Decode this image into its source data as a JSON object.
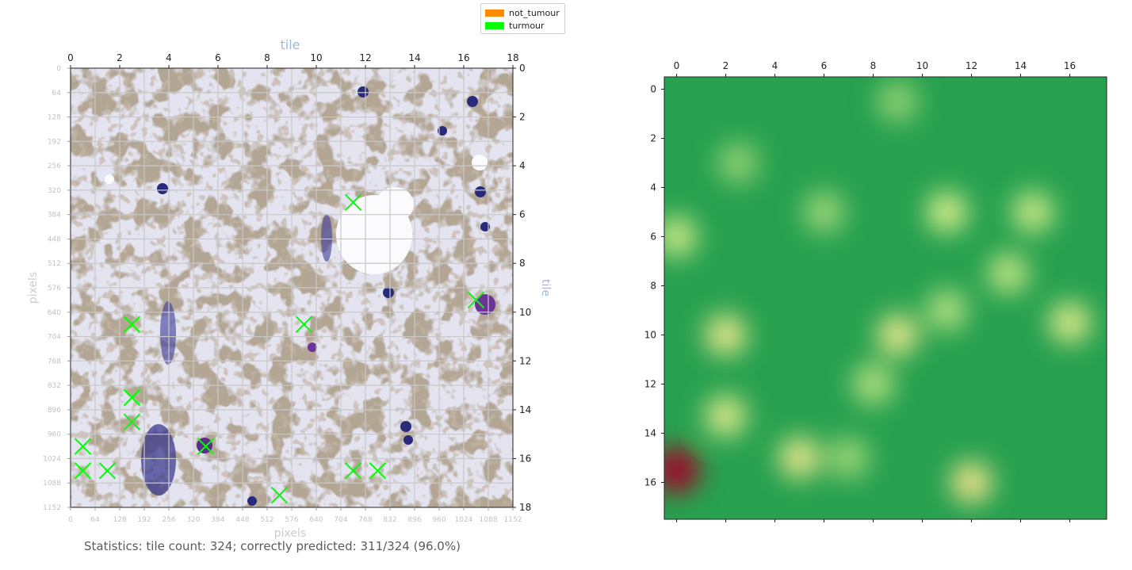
{
  "legend": {
    "items": [
      {
        "label": "not_tumour",
        "color": "#ff8c00"
      },
      {
        "label": "turmour",
        "color": "#00ff00"
      }
    ]
  },
  "chart_data": [
    {
      "type": "scatter",
      "title": "",
      "xlabel_top": "tile",
      "ylabel_right": "tile",
      "xlabel_bottom": "pixels",
      "ylabel_left": "pixels",
      "top_ticks": [
        0,
        2,
        4,
        6,
        8,
        10,
        12,
        14,
        16,
        18
      ],
      "right_ticks": [
        0,
        2,
        4,
        6,
        8,
        10,
        12,
        14,
        16,
        18
      ],
      "pixel_ticks": [
        0,
        64,
        128,
        192,
        256,
        320,
        384,
        448,
        512,
        576,
        640,
        704,
        768,
        832,
        896,
        960,
        1024,
        1088,
        1152
      ],
      "tile_range": [
        0,
        18
      ],
      "grid": true,
      "background": "microscopy tile image",
      "series": [
        {
          "name": "turmour",
          "color": "#00ff00",
          "marker": "x",
          "points": [
            {
              "x": 11.5,
              "y": 5.5
            },
            {
              "x": 16.5,
              "y": 9.5
            },
            {
              "x": 2.5,
              "y": 10.5
            },
            {
              "x": 9.5,
              "y": 10.5
            },
            {
              "x": 2.5,
              "y": 13.5
            },
            {
              "x": 2.5,
              "y": 14.5
            },
            {
              "x": 0.5,
              "y": 15.5
            },
            {
              "x": 5.5,
              "y": 15.5
            },
            {
              "x": 0.5,
              "y": 16.5
            },
            {
              "x": 1.5,
              "y": 16.5
            },
            {
              "x": 11.5,
              "y": 16.5
            },
            {
              "x": 12.5,
              "y": 16.5
            },
            {
              "x": 8.5,
              "y": 17.5
            }
          ]
        }
      ]
    },
    {
      "type": "heatmap",
      "title": "",
      "xticks": [
        0,
        2,
        4,
        6,
        8,
        10,
        12,
        14,
        16
      ],
      "yticks": [
        0,
        2,
        4,
        6,
        8,
        10,
        12,
        14,
        16
      ],
      "x_range": [
        -0.5,
        17.5
      ],
      "y_range": [
        -0.5,
        17.5
      ],
      "colormap": "RdYlGn",
      "hotspots": [
        {
          "x": 0,
          "y": 15.5,
          "level": 0.0
        },
        {
          "x": 12,
          "y": 16,
          "level": 0.45
        },
        {
          "x": 2,
          "y": 10,
          "level": 0.5
        },
        {
          "x": 9,
          "y": 10,
          "level": 0.5
        },
        {
          "x": 5,
          "y": 15,
          "level": 0.5
        },
        {
          "x": 2,
          "y": 13.3,
          "level": 0.55
        },
        {
          "x": 16,
          "y": 9.5,
          "level": 0.55
        },
        {
          "x": 11,
          "y": 5,
          "level": 0.6
        },
        {
          "x": 0,
          "y": 6,
          "level": 0.62
        },
        {
          "x": 14.5,
          "y": 5,
          "level": 0.62
        },
        {
          "x": 13.5,
          "y": 7.5,
          "level": 0.64
        },
        {
          "x": 8,
          "y": 12,
          "level": 0.66
        },
        {
          "x": 11,
          "y": 9,
          "level": 0.66
        },
        {
          "x": 6,
          "y": 5,
          "level": 0.7
        },
        {
          "x": 2.5,
          "y": 3,
          "level": 0.72
        },
        {
          "x": 9,
          "y": 0.5,
          "level": 0.72
        },
        {
          "x": 7,
          "y": 15,
          "level": 0.7
        }
      ]
    }
  ],
  "stats": {
    "text": "Statistics: tile count: 324; correctly predicted: 311/324 (96.0%)"
  }
}
